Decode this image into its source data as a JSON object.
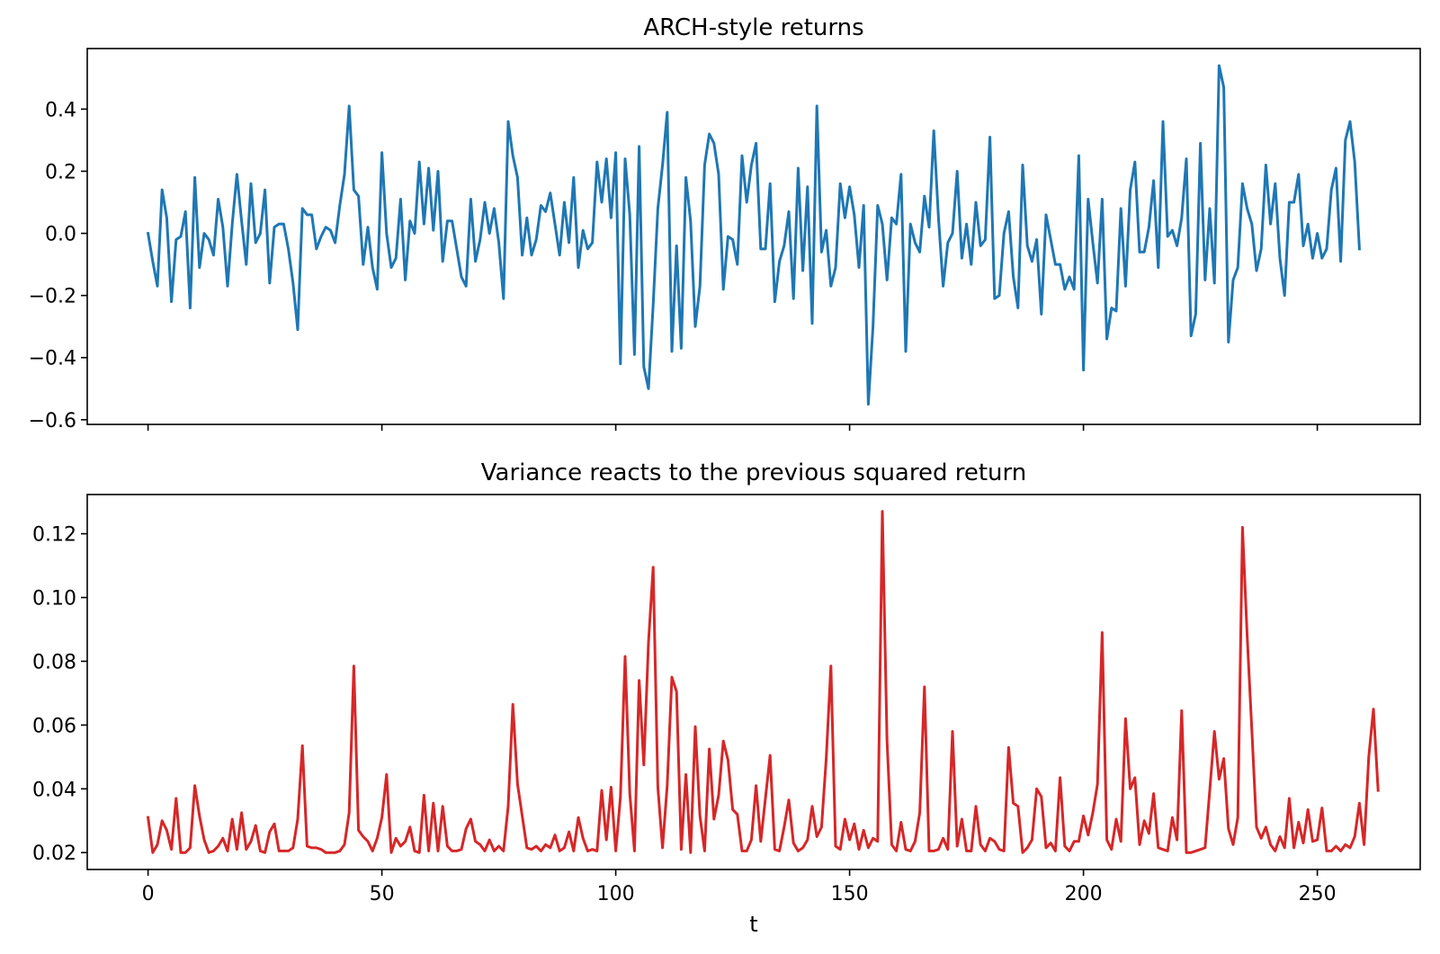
{
  "chart_data": [
    {
      "type": "line",
      "title": "ARCH-style returns",
      "xlabel": "",
      "ylabel": "",
      "xlim": [
        -13,
        272
      ],
      "ylim": [
        -0.615,
        0.595
      ],
      "yticks": [
        -0.6,
        -0.4,
        -0.2,
        0.0,
        0.2,
        0.4
      ],
      "ytick_labels": [
        "−0.6",
        "−0.4",
        "−0.2",
        "0.0",
        "0.2",
        "0.4"
      ],
      "xticks": [
        0,
        50,
        100,
        150,
        200,
        250
      ],
      "show_xtick_labels": false,
      "grid": false,
      "legend": "none",
      "series": [
        {
          "color": "#1f77b4",
          "x_start": 0,
          "x_step": 1,
          "values": [
            0.0,
            -0.09,
            -0.17,
            0.14,
            0.05,
            -0.22,
            -0.02,
            -0.01,
            0.07,
            -0.24,
            0.18,
            -0.11,
            0.0,
            -0.02,
            -0.07,
            0.11,
            0.02,
            -0.17,
            0.03,
            0.19,
            0.04,
            -0.1,
            0.16,
            -0.03,
            0.0,
            0.14,
            -0.16,
            0.02,
            0.03,
            0.03,
            -0.05,
            -0.16,
            -0.31,
            0.08,
            0.06,
            0.06,
            -0.05,
            -0.01,
            0.02,
            0.01,
            -0.03,
            0.09,
            0.19,
            0.41,
            0.14,
            0.12,
            -0.1,
            0.02,
            -0.11,
            -0.18,
            0.26,
            0.0,
            -0.11,
            -0.08,
            0.11,
            -0.15,
            0.04,
            0.0,
            0.23,
            0.03,
            0.21,
            0.01,
            0.2,
            -0.09,
            0.04,
            0.04,
            -0.05,
            -0.14,
            -0.17,
            0.11,
            -0.09,
            -0.02,
            0.1,
            0.0,
            0.08,
            -0.03,
            -0.21,
            0.36,
            0.25,
            0.18,
            -0.07,
            0.05,
            -0.07,
            -0.02,
            0.09,
            0.07,
            0.13,
            0.03,
            -0.07,
            0.1,
            -0.03,
            0.18,
            -0.11,
            0.01,
            -0.05,
            -0.03,
            0.23,
            0.1,
            0.24,
            0.05,
            0.26,
            -0.42,
            0.24,
            0.06,
            -0.39,
            0.28,
            -0.43,
            -0.5,
            -0.23,
            0.08,
            0.22,
            0.39,
            -0.38,
            -0.04,
            -0.37,
            0.18,
            0.04,
            -0.3,
            -0.17,
            0.22,
            0.32,
            0.29,
            0.19,
            -0.18,
            -0.01,
            -0.02,
            -0.1,
            0.25,
            0.1,
            0.22,
            0.29,
            -0.05,
            -0.05,
            0.16,
            -0.22,
            -0.09,
            -0.04,
            0.07,
            -0.21,
            0.21,
            -0.12,
            0.15,
            -0.29,
            0.41,
            -0.06,
            0.01,
            -0.17,
            -0.11,
            0.16,
            0.05,
            0.15,
            0.06,
            -0.11,
            0.09,
            -0.55,
            -0.3,
            0.09,
            0.03,
            -0.15,
            0.05,
            0.03,
            0.19,
            -0.38,
            0.03,
            -0.03,
            -0.06,
            0.12,
            0.02,
            0.33,
            0.05,
            -0.17,
            -0.03,
            0.0,
            0.2,
            -0.08,
            0.03,
            -0.1,
            0.1,
            -0.04,
            -0.02,
            0.31,
            -0.21,
            -0.2,
            0.0,
            0.07,
            -0.14,
            -0.24,
            0.22,
            -0.04,
            -0.09,
            -0.02,
            -0.26,
            0.06,
            -0.02,
            -0.1,
            -0.1,
            -0.18,
            -0.14,
            -0.18,
            0.25,
            -0.44,
            0.11,
            -0.03,
            -0.16,
            0.11,
            -0.34,
            -0.24,
            -0.25,
            0.08,
            -0.17,
            0.14,
            0.23,
            -0.06,
            -0.06,
            0.02,
            0.17,
            -0.11,
            0.36,
            -0.01,
            0.01,
            -0.04,
            0.05,
            0.24,
            -0.33,
            -0.26,
            0.29,
            -0.15,
            0.08,
            -0.16,
            0.54,
            0.47,
            -0.35,
            -0.15,
            -0.11,
            0.16,
            0.08,
            0.03,
            -0.12,
            -0.05,
            0.22,
            0.03,
            0.16,
            -0.08,
            -0.2,
            0.1,
            0.1,
            0.19,
            -0.04,
            0.03,
            -0.08,
            0.0,
            -0.08,
            -0.05,
            0.14,
            0.21,
            -0.09,
            0.3,
            0.36,
            0.23,
            -0.05
          ]
        }
      ]
    },
    {
      "type": "line",
      "title": "Variance reacts to the previous squared return",
      "xlabel": "t",
      "ylabel": "",
      "xlim": [
        -13,
        272
      ],
      "ylim": [
        0.0147,
        0.1323
      ],
      "yticks": [
        0.02,
        0.04,
        0.06,
        0.08,
        0.1,
        0.12
      ],
      "ytick_labels": [
        "0.02",
        "0.04",
        "0.06",
        "0.08",
        "0.10",
        "0.12"
      ],
      "xticks": [
        0,
        50,
        100,
        150,
        200,
        250
      ],
      "xtick_labels": [
        "0",
        "50",
        "100",
        "150",
        "200",
        "250"
      ],
      "show_xtick_labels": true,
      "grid": false,
      "legend": "none",
      "series": [
        {
          "color": "#d62728",
          "x_start": 0,
          "x_step": 1,
          "values": [
            0.031,
            0.02,
            0.0225,
            0.03,
            0.027,
            0.021,
            0.037,
            0.02,
            0.02,
            0.0215,
            0.041,
            0.0315,
            0.024,
            0.02,
            0.0205,
            0.022,
            0.0245,
            0.0205,
            0.0305,
            0.021,
            0.0325,
            0.021,
            0.0235,
            0.0285,
            0.0205,
            0.02,
            0.0265,
            0.029,
            0.0205,
            0.0205,
            0.0205,
            0.0215,
            0.0305,
            0.0535,
            0.022,
            0.0215,
            0.0215,
            0.021,
            0.02,
            0.02,
            0.02,
            0.0205,
            0.0225,
            0.0325,
            0.0785,
            0.027,
            0.025,
            0.0235,
            0.0205,
            0.0245,
            0.031,
            0.0445,
            0.02,
            0.0245,
            0.022,
            0.0235,
            0.028,
            0.0205,
            0.02,
            0.038,
            0.0205,
            0.0355,
            0.0205,
            0.0345,
            0.022,
            0.0205,
            0.0205,
            0.021,
            0.0275,
            0.0305,
            0.0235,
            0.0225,
            0.0205,
            0.024,
            0.0205,
            0.022,
            0.0205,
            0.0345,
            0.0665,
            0.0415,
            0.0315,
            0.0215,
            0.021,
            0.022,
            0.0205,
            0.0225,
            0.0215,
            0.0255,
            0.0205,
            0.0215,
            0.0265,
            0.0205,
            0.031,
            0.0245,
            0.0205,
            0.021,
            0.0205,
            0.0395,
            0.024,
            0.0405,
            0.0205,
            0.0375,
            0.0815,
            0.0385,
            0.0205,
            0.074,
            0.0475,
            0.086,
            0.1095,
            0.0405,
            0.0215,
            0.041,
            0.075,
            0.0705,
            0.021,
            0.0445,
            0.02,
            0.0595,
            0.0315,
            0.0205,
            0.0525,
            0.0305,
            0.038,
            0.055,
            0.049,
            0.0335,
            0.032,
            0.0205,
            0.0205,
            0.024,
            0.041,
            0.0235,
            0.037,
            0.0505,
            0.021,
            0.0205,
            0.028,
            0.0365,
            0.023,
            0.0205,
            0.0215,
            0.024,
            0.0345,
            0.025,
            0.028,
            0.0495,
            0.0785,
            0.022,
            0.021,
            0.0305,
            0.024,
            0.029,
            0.021,
            0.027,
            0.0215,
            0.0245,
            0.0235,
            0.127,
            0.055,
            0.0225,
            0.0205,
            0.0295,
            0.021,
            0.0205,
            0.0235,
            0.0325,
            0.072,
            0.0205,
            0.0205,
            0.021,
            0.0245,
            0.021,
            0.058,
            0.022,
            0.0305,
            0.0205,
            0.0205,
            0.0345,
            0.0225,
            0.0205,
            0.0245,
            0.0235,
            0.021,
            0.0205,
            0.053,
            0.0355,
            0.0345,
            0.02,
            0.0215,
            0.024,
            0.04,
            0.0375,
            0.0215,
            0.023,
            0.0205,
            0.0435,
            0.022,
            0.0205,
            0.0235,
            0.0235,
            0.0315,
            0.0255,
            0.0325,
            0.0415,
            0.089,
            0.024,
            0.021,
            0.0305,
            0.0235,
            0.062,
            0.04,
            0.0435,
            0.0225,
            0.03,
            0.026,
            0.0385,
            0.0215,
            0.021,
            0.0205,
            0.031,
            0.024,
            0.0645,
            0.02,
            0.02,
            0.0205,
            0.021,
            0.0215,
            0.0395,
            0.058,
            0.043,
            0.0495,
            0.0275,
            0.0225,
            0.031,
            0.122,
            0.088,
            0.0585,
            0.028,
            0.0245,
            0.028,
            0.0225,
            0.0205,
            0.025,
            0.0215,
            0.037,
            0.0215,
            0.0295,
            0.023,
            0.0335,
            0.0235,
            0.024,
            0.034,
            0.0205,
            0.0205,
            0.022,
            0.0205,
            0.0225,
            0.0215,
            0.025,
            0.0355,
            0.0225,
            0.05,
            0.065,
            0.0395
          ]
        }
      ]
    }
  ]
}
